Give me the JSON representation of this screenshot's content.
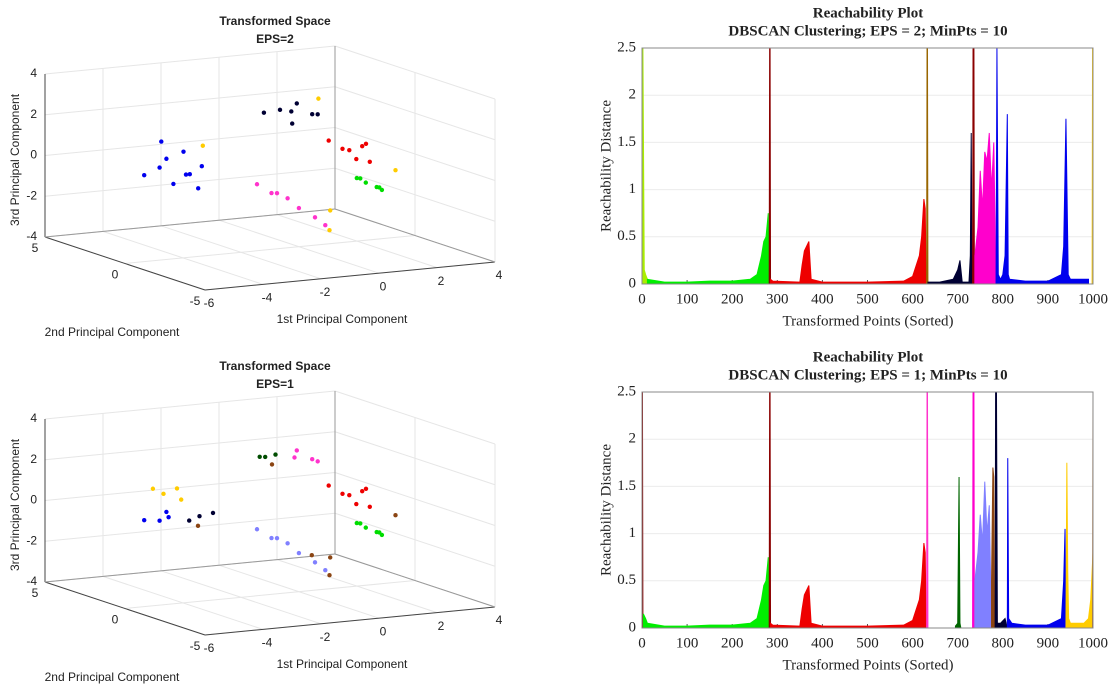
{
  "chart_data": [
    {
      "type": "scatter3d",
      "title": "Transformed Space",
      "subtitle": "EPS=2",
      "xlabel": "1st Principal Component",
      "ylabel": "2nd Principal Component",
      "zlabel": "3rd Principal Component",
      "xlim": [
        -6,
        4
      ],
      "ylim": [
        -5,
        5
      ],
      "zlim": [
        -4,
        4
      ],
      "xticks": [
        -6,
        -4,
        -2,
        0,
        2,
        4
      ],
      "yticks": [
        -5,
        0,
        5
      ],
      "zticks": [
        -4,
        -2,
        0,
        2,
        4
      ],
      "grid": true,
      "series": [
        {
          "color": "#0000ee",
          "x": [
            -2.6,
            -2.2,
            -1.8,
            -2.4,
            -1.5,
            -2.0,
            -2.8,
            -1.2,
            -2.1,
            -1.6
          ],
          "y": [
            4,
            4.3,
            3.8,
            3.5,
            4.5,
            3.2,
            4.6,
            3.9,
            4.8,
            3.4
          ],
          "z": [
            -0.8,
            -0.5,
            -1.2,
            -1.5,
            -0.3,
            -1.0,
            -1.3,
            -0.9,
            0.2,
            -1.8
          ]
        },
        {
          "color": "#000033",
          "x": [
            1.0,
            1.5,
            2.0,
            1.8,
            0.5,
            2.3,
            1.2
          ],
          "y": [
            3,
            3.2,
            2.8,
            3.4,
            3.1,
            3.0,
            2.6
          ],
          "z": [
            1.8,
            1.6,
            1.5,
            1.9,
            1.7,
            1.4,
            1.2
          ]
        },
        {
          "color": "#ee0000",
          "x": [
            1.5,
            1.9,
            2.2,
            1.7,
            2.4,
            1.3,
            2.0
          ],
          "y": [
            0,
            0.3,
            -0.2,
            -0.5,
            0.4,
            0.5,
            -0.8
          ],
          "z": [
            0.6,
            0.4,
            0.8,
            0.2,
            0.5,
            0.9,
            0.1
          ]
        },
        {
          "color": "#00dd00",
          "x": [
            1.2,
            1.5,
            1.0,
            1.7,
            1.3,
            0.9
          ],
          "y": [
            -2,
            -2.3,
            -1.8,
            -2.1,
            -2.5,
            -2.2
          ],
          "z": [
            -0.5,
            -0.7,
            -0.3,
            -0.9,
            -0.6,
            -0.2
          ]
        },
        {
          "color": "#ff33cc",
          "x": [
            -2.0,
            -1.5,
            -1.0,
            -0.5,
            0,
            0.3,
            -1.2
          ],
          "y": [
            -1,
            -1,
            -1.1,
            -0.9,
            -1,
            -1.1,
            -0.8
          ],
          "z": [
            -0.4,
            -0.9,
            -1.2,
            -1.8,
            -2.3,
            -2.7,
            -1.0
          ]
        },
        {
          "color": "#ffcc00",
          "x": [
            2.6,
            -1.0,
            0.5,
            0.8,
            2.5
          ],
          "y": [
            3.5,
            4.2,
            -1,
            -0.5,
            -1.5
          ],
          "z": [
            2.0,
            0.0,
            -3.0,
            -2.2,
            -0.2
          ]
        }
      ]
    },
    {
      "type": "reachability",
      "title": "Reachability Plot",
      "subtitle": "DBSCAN Clustering; EPS = 2; MinPts = 10",
      "xlabel": "Transformed Points (Sorted)",
      "ylabel": "Reachability Distance",
      "xlim": [
        0,
        1000
      ],
      "ylim": [
        0,
        2.5
      ],
      "xticks": [
        0,
        100,
        200,
        300,
        400,
        500,
        600,
        700,
        800,
        900,
        1000
      ],
      "yticks": [
        0,
        0.5,
        1,
        1.5,
        2,
        2.5
      ],
      "grid": true,
      "series": [
        {
          "color": "#aaee00",
          "x": [
            0,
            1,
            2,
            5,
            8,
            12
          ],
          "values": [
            0,
            2.5,
            2.5,
            0.15,
            0.1,
            0.05
          ]
        },
        {
          "color": "#00ee00",
          "x": [
            12,
            50,
            100,
            150,
            200,
            240,
            255,
            265,
            270,
            275,
            280,
            282
          ],
          "values": [
            0.05,
            0.02,
            0.02,
            0.03,
            0.03,
            0.05,
            0.1,
            0.3,
            0.45,
            0.5,
            0.75,
            0
          ]
        },
        {
          "color": "#8b0000",
          "x": [
            282,
            283,
            284,
            285
          ],
          "values": [
            0,
            2.5,
            2.5,
            0
          ]
        },
        {
          "color": "#ee0000",
          "x": [
            285,
            290,
            350,
            355,
            360,
            365,
            370,
            375,
            400,
            500,
            580,
            600,
            615,
            620,
            625,
            628,
            630
          ],
          "values": [
            0.05,
            0.03,
            0.02,
            0.2,
            0.35,
            0.4,
            0.45,
            0.05,
            0.02,
            0.02,
            0.03,
            0.08,
            0.3,
            0.5,
            0.9,
            0.8,
            0
          ]
        },
        {
          "color": "#996600",
          "x": [
            631,
            632,
            633,
            634
          ],
          "values": [
            0,
            2.5,
            2.5,
            0
          ]
        },
        {
          "color": "#000033",
          "x": [
            634,
            660,
            690,
            700,
            705,
            710,
            725,
            728,
            730,
            732
          ],
          "values": [
            0.02,
            0.02,
            0.05,
            0.15,
            0.25,
            0.02,
            0.02,
            0.3,
            1.6,
            0
          ]
        },
        {
          "color": "#8b0000",
          "x": [
            733,
            734,
            736,
            737
          ],
          "values": [
            0,
            2.5,
            2.5,
            0
          ]
        },
        {
          "color": "#ff00cc",
          "x": [
            738,
            745,
            750,
            755,
            760,
            765,
            770,
            775,
            780,
            785
          ],
          "values": [
            0.3,
            0.6,
            1.2,
            0.8,
            1.4,
            1.3,
            1.6,
            1.0,
            1.5,
            0
          ]
        },
        {
          "color": "#0000ee",
          "x": [
            785,
            787,
            790,
            795,
            800,
            805,
            810,
            812,
            815,
            850,
            900,
            930,
            935,
            938,
            940,
            945,
            950,
            990
          ],
          "values": [
            0,
            2.5,
            0.1,
            0.05,
            0.1,
            0.3,
            1.8,
            0.1,
            0.05,
            0.03,
            0.03,
            0.1,
            0.4,
            1.2,
            1.75,
            0.1,
            0.05,
            0.05
          ]
        },
        {
          "color": "#ffcc00",
          "x": [
            998,
            999,
            1000
          ],
          "values": [
            0,
            2.5,
            2.5
          ]
        }
      ]
    },
    {
      "type": "scatter3d",
      "title": "Transformed Space",
      "subtitle": "EPS=1",
      "xlabel": "1st Principal Component",
      "ylabel": "2nd Principal Component",
      "zlabel": "3rd Principal Component",
      "xlim": [
        -6,
        4
      ],
      "ylim": [
        -5,
        5
      ],
      "zlim": [
        -4,
        4
      ],
      "xticks": [
        -6,
        -4,
        -2,
        0,
        2,
        4
      ],
      "yticks": [
        -5,
        0,
        5
      ],
      "zticks": [
        -4,
        -2,
        0,
        2,
        4
      ],
      "grid": true,
      "series": [
        {
          "color": "#ffcc00",
          "x": [
            -2.3,
            -2.0,
            -2.5,
            -1.8
          ],
          "y": [
            4.3,
            4.0,
            4.6,
            4.1
          ],
          "z": [
            0.0,
            0.3,
            0.2,
            -0.3
          ]
        },
        {
          "color": "#0000ee",
          "x": [
            -2.6,
            -2.2,
            -2.8,
            -2.4
          ],
          "y": [
            4,
            4.3,
            4.6,
            3.8
          ],
          "z": [
            -1.2,
            -0.9,
            -1.3,
            -1.0
          ]
        },
        {
          "color": "#000033",
          "x": [
            -1.5,
            -1.2,
            -1.8
          ],
          "y": [
            3.5,
            3.2,
            3.6
          ],
          "z": [
            -1.0,
            -0.8,
            -1.2
          ]
        },
        {
          "color": "#004d00",
          "x": [
            0.3,
            0.6,
            0.9
          ],
          "y": [
            3,
            3.2,
            3.1
          ],
          "z": [
            1.8,
            1.7,
            1.8
          ]
        },
        {
          "color": "#ff33cc",
          "x": [
            1.5,
            2.0,
            1.8,
            2.3
          ],
          "y": [
            3,
            2.8,
            3.4,
            3.0
          ],
          "z": [
            1.6,
            1.5,
            1.8,
            1.3
          ]
        },
        {
          "color": "#ee0000",
          "x": [
            1.5,
            1.9,
            2.2,
            1.7,
            2.4,
            1.3,
            2.0
          ],
          "y": [
            0,
            0.3,
            -0.2,
            -0.5,
            0.4,
            0.5,
            -0.8
          ],
          "z": [
            0.6,
            0.4,
            0.8,
            0.2,
            0.5,
            0.9,
            0.1
          ]
        },
        {
          "color": "#00dd00",
          "x": [
            1.2,
            1.5,
            1.0,
            1.7,
            1.3,
            0.9
          ],
          "y": [
            -2,
            -2.3,
            -1.8,
            -2.1,
            -2.5,
            -2.2
          ],
          "z": [
            -0.5,
            -0.7,
            -0.3,
            -0.9,
            -0.6,
            -0.2
          ]
        },
        {
          "color": "#8080ff",
          "x": [
            -2.0,
            -1.5,
            -1.0,
            -0.5,
            0,
            0.3,
            -1.2
          ],
          "y": [
            -1,
            -1,
            -1.1,
            -0.9,
            -1,
            -1.1,
            -0.8
          ],
          "z": [
            -0.4,
            -0.9,
            -1.2,
            -1.8,
            -2.3,
            -2.7,
            -1.0
          ]
        },
        {
          "color": "#8b4513",
          "x": [
            1.0,
            -1.0,
            0.5,
            0.0,
            0.8,
            2.5
          ],
          "y": [
            3.5,
            4.5,
            -1,
            -0.8,
            -0.5,
            -1.5
          ],
          "z": [
            1.2,
            -1.8,
            -3.0,
            -2.0,
            -2.3,
            -0.2
          ]
        }
      ]
    },
    {
      "type": "reachability",
      "title": "Reachability Plot",
      "subtitle": "DBSCAN Clustering; EPS = 1; MinPts = 10",
      "xlabel": "Transformed Points (Sorted)",
      "ylabel": "Reachability Distance",
      "xlim": [
        0,
        1000
      ],
      "ylim": [
        0,
        2.5
      ],
      "xticks": [
        0,
        100,
        200,
        300,
        400,
        500,
        600,
        700,
        800,
        900,
        1000
      ],
      "yticks": [
        0,
        0.5,
        1,
        1.5,
        2,
        2.5
      ],
      "grid": true,
      "series": [
        {
          "color": "#8b0000",
          "x": [
            0,
            1,
            2,
            3
          ],
          "values": [
            2.5,
            2.5,
            0.1,
            0
          ]
        },
        {
          "color": "#00ee00",
          "x": [
            3,
            8,
            12,
            50,
            100,
            150,
            200,
            240,
            255,
            265,
            270,
            275,
            280,
            282
          ],
          "values": [
            0.15,
            0.1,
            0.05,
            0.02,
            0.02,
            0.03,
            0.03,
            0.05,
            0.1,
            0.3,
            0.45,
            0.5,
            0.75,
            0
          ]
        },
        {
          "color": "#8b0000",
          "x": [
            282,
            283,
            284,
            285
          ],
          "values": [
            0,
            2.5,
            2.5,
            0
          ]
        },
        {
          "color": "#ee0000",
          "x": [
            285,
            290,
            350,
            355,
            360,
            365,
            370,
            375,
            400,
            500,
            580,
            600,
            615,
            620,
            625,
            628,
            630
          ],
          "values": [
            0.05,
            0.03,
            0.02,
            0.2,
            0.35,
            0.4,
            0.45,
            0.05,
            0.02,
            0.02,
            0.03,
            0.08,
            0.3,
            0.5,
            0.9,
            0.8,
            0
          ]
        },
        {
          "color": "#ff33cc",
          "x": [
            631,
            632,
            633,
            634
          ],
          "values": [
            0,
            2.5,
            2.5,
            0
          ]
        },
        {
          "color": "#006600",
          "x": [
            695,
            700,
            703,
            705,
            707
          ],
          "values": [
            0.02,
            0.05,
            1.6,
            0.05,
            0
          ]
        },
        {
          "color": "#ff00cc",
          "x": [
            733,
            734,
            736,
            737
          ],
          "values": [
            0,
            2.5,
            2.5,
            0
          ]
        },
        {
          "color": "#8080ff",
          "x": [
            738,
            745,
            750,
            755,
            760,
            765,
            770,
            775
          ],
          "values": [
            0.5,
            0.8,
            1.2,
            0.9,
            1.55,
            1.0,
            1.3,
            0
          ]
        },
        {
          "color": "#8b4513",
          "x": [
            775,
            778,
            780,
            782
          ],
          "values": [
            0.5,
            1.7,
            1.6,
            0
          ]
        },
        {
          "color": "#000033",
          "x": [
            783,
            784,
            786,
            788,
            795,
            805,
            810
          ],
          "values": [
            0,
            2.5,
            2.5,
            0.05,
            0.05,
            0.1,
            0
          ]
        },
        {
          "color": "#0000ee",
          "x": [
            810,
            811,
            813,
            820,
            850,
            900,
            930,
            935,
            938,
            940
          ],
          "values": [
            0,
            1.8,
            0.1,
            0.05,
            0.03,
            0.03,
            0.1,
            0.5,
            1.05,
            0
          ]
        },
        {
          "color": "#ffcc00",
          "x": [
            940,
            942,
            944,
            946,
            950,
            980,
            990,
            995,
            998,
            1000
          ],
          "values": [
            0,
            1.75,
            0.6,
            0.1,
            0.05,
            0.05,
            0.1,
            0.3,
            0.6,
            0.8
          ]
        },
        {
          "color": "#b5651d",
          "x": [
            999,
            1000
          ],
          "values": [
            0,
            2.5
          ]
        }
      ]
    }
  ]
}
